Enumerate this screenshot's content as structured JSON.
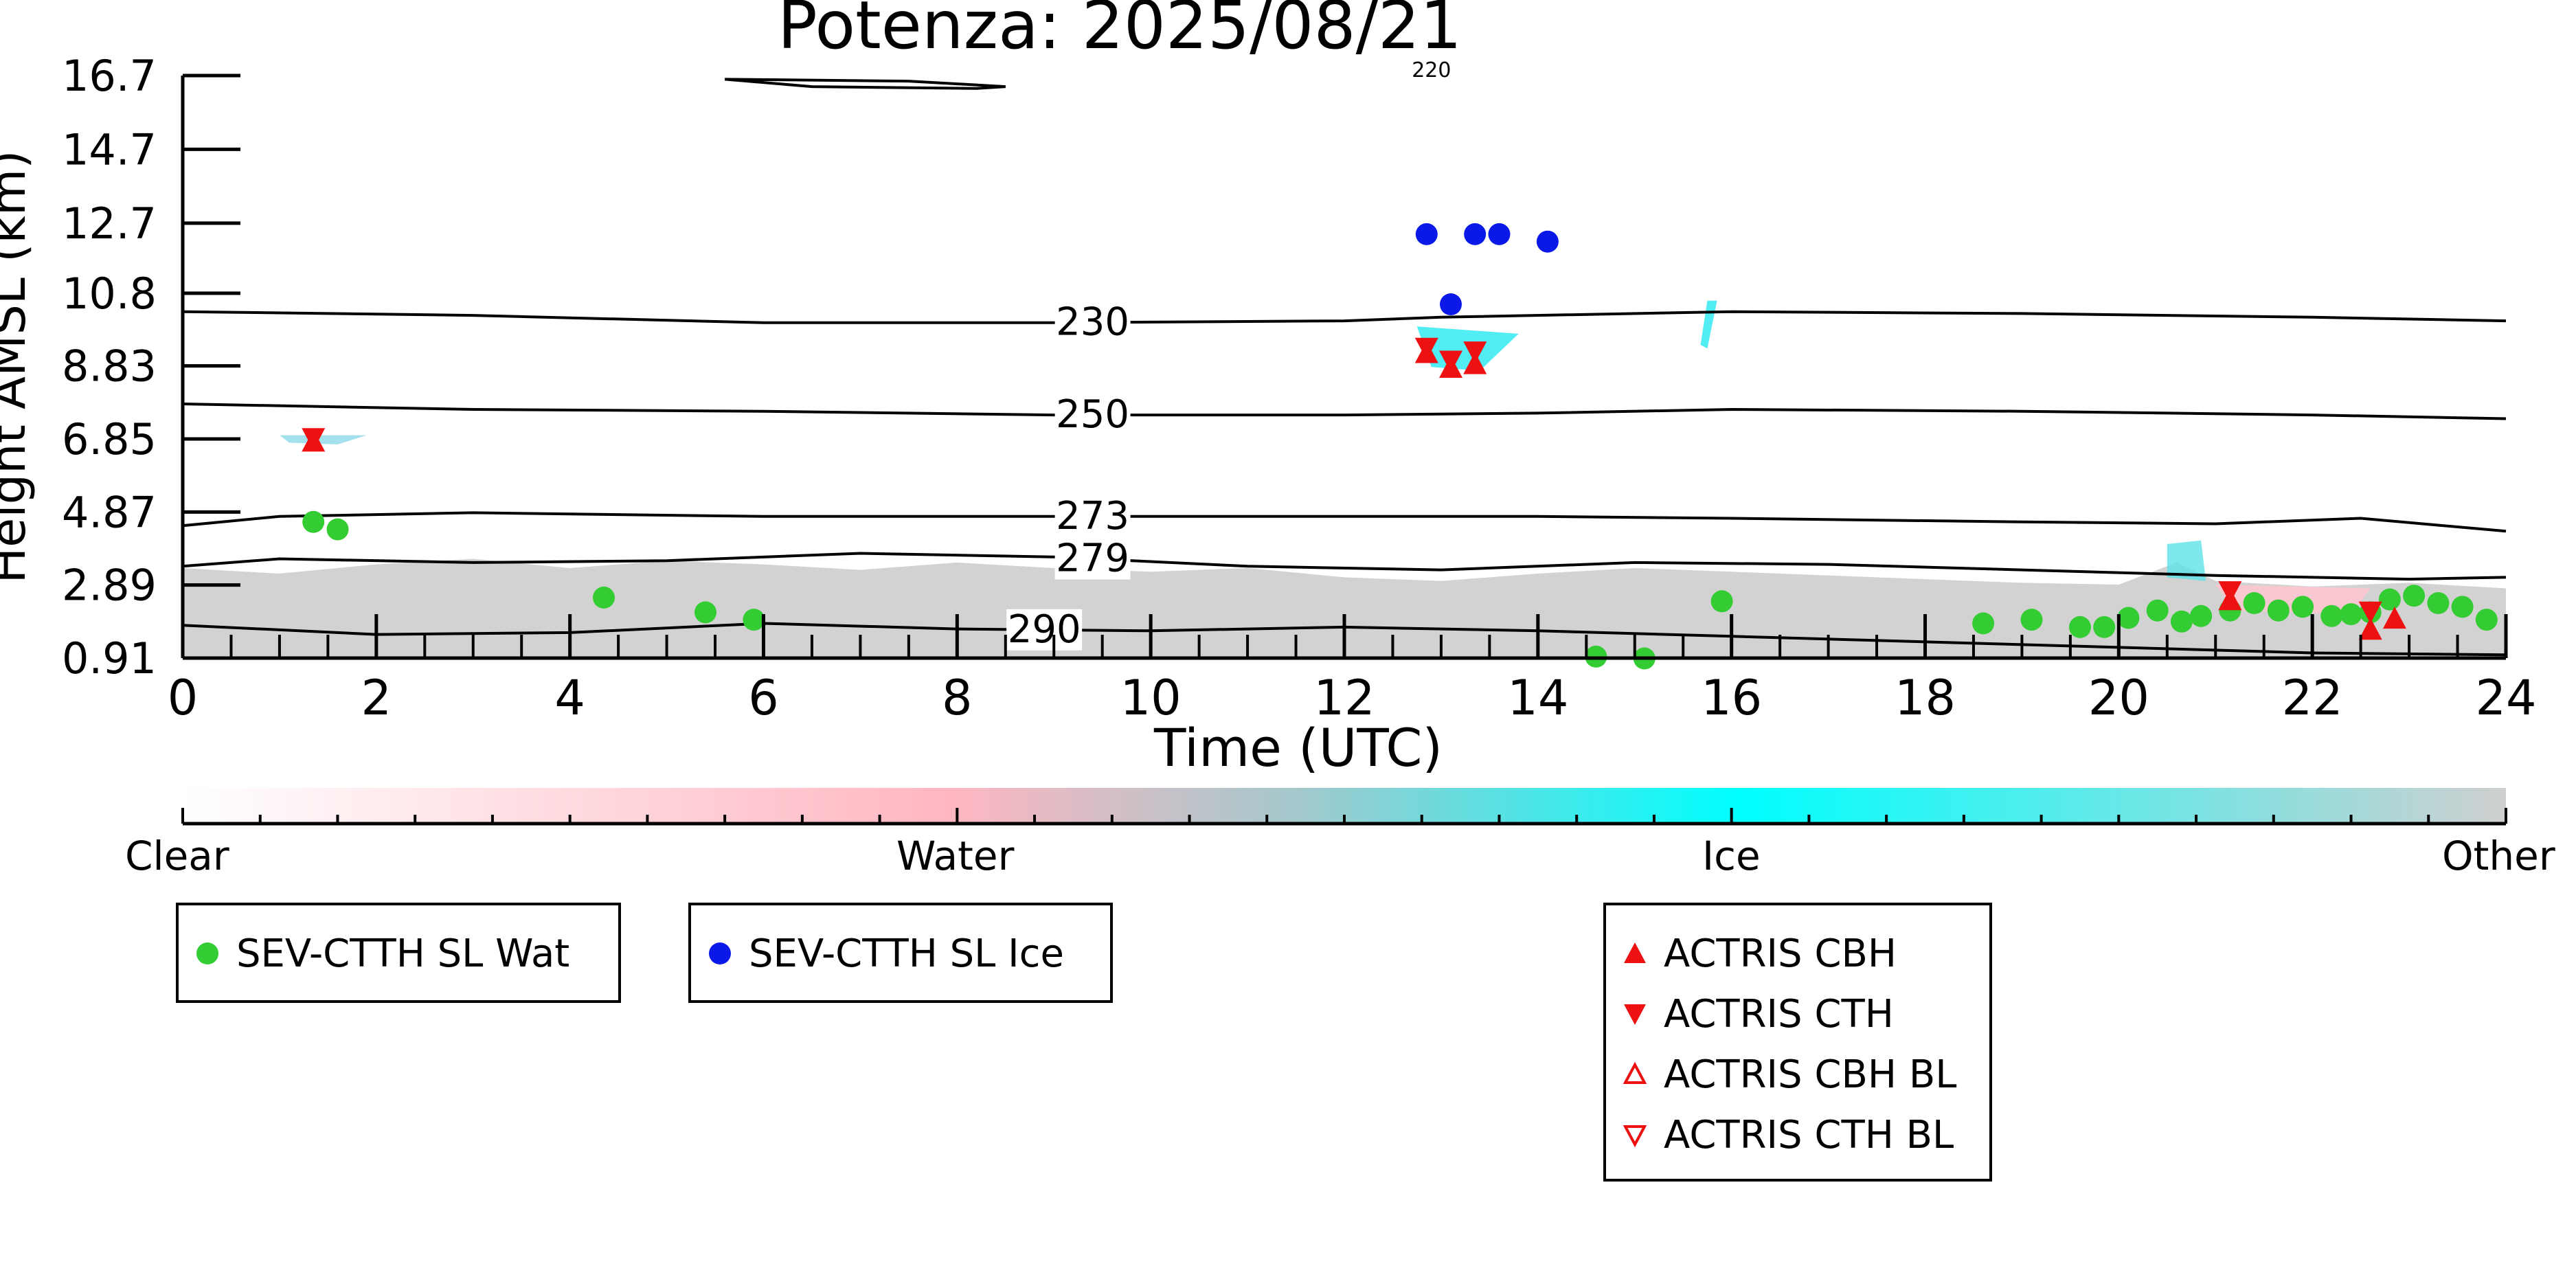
{
  "chart_data": {
    "type": "scatter",
    "title": "Potenza: 2025/08/21",
    "xlabel": "Time (UTC)",
    "ylabel": "Height AMSL (km)",
    "xlim": [
      0,
      24
    ],
    "ylim": [
      0.91,
      16.7
    ],
    "x_ticks": [
      "0",
      "2",
      "4",
      "6",
      "8",
      "10",
      "12",
      "14",
      "16",
      "18",
      "20",
      "22",
      "24"
    ],
    "y_ticks": [
      "0.91",
      "2.89",
      "4.87",
      "6.85",
      "8.83",
      "10.8",
      "12.7",
      "14.7",
      "16.7"
    ],
    "y_tick_values": [
      0.91,
      2.89,
      4.87,
      6.85,
      8.83,
      10.8,
      12.7,
      14.7,
      16.7
    ],
    "grid": false,
    "contours": [
      {
        "label": "230",
        "label_x": 9.4,
        "points": [
          [
            0,
            10.3
          ],
          [
            3,
            10.2
          ],
          [
            6,
            10.0
          ],
          [
            9,
            10.0
          ],
          [
            12,
            10.05
          ],
          [
            13,
            10.15
          ],
          [
            16,
            10.3
          ],
          [
            19,
            10.25
          ],
          [
            22,
            10.15
          ],
          [
            24,
            10.05
          ]
        ]
      },
      {
        "label": "250",
        "label_x": 9.4,
        "points": [
          [
            0,
            7.8
          ],
          [
            3,
            7.65
          ],
          [
            6,
            7.6
          ],
          [
            9,
            7.5
          ],
          [
            12,
            7.5
          ],
          [
            14,
            7.55
          ],
          [
            16,
            7.65
          ],
          [
            19,
            7.6
          ],
          [
            22,
            7.5
          ],
          [
            24,
            7.4
          ]
        ]
      },
      {
        "label": "273",
        "label_x": 9.4,
        "points": [
          [
            0,
            4.5
          ],
          [
            1,
            4.75
          ],
          [
            3,
            4.85
          ],
          [
            6,
            4.75
          ],
          [
            9,
            4.75
          ],
          [
            12,
            4.75
          ],
          [
            14,
            4.75
          ],
          [
            16,
            4.7
          ],
          [
            19,
            4.6
          ],
          [
            21,
            4.55
          ],
          [
            22.5,
            4.7
          ],
          [
            24,
            4.35
          ]
        ]
      },
      {
        "label": "279",
        "label_x": 9.4,
        "points": [
          [
            0,
            3.4
          ],
          [
            1,
            3.6
          ],
          [
            3,
            3.5
          ],
          [
            5,
            3.55
          ],
          [
            7,
            3.75
          ],
          [
            9,
            3.65
          ],
          [
            11,
            3.4
          ],
          [
            13,
            3.3
          ],
          [
            15,
            3.5
          ],
          [
            17,
            3.45
          ],
          [
            19,
            3.3
          ],
          [
            21,
            3.15
          ],
          [
            23,
            3.05
          ],
          [
            24,
            3.1
          ]
        ]
      },
      {
        "label": "290",
        "label_x": 8.9,
        "points": [
          [
            0,
            1.8
          ],
          [
            2,
            1.55
          ],
          [
            4,
            1.6
          ],
          [
            6,
            1.85
          ],
          [
            8,
            1.7
          ],
          [
            10,
            1.65
          ],
          [
            12,
            1.75
          ],
          [
            14,
            1.65
          ],
          [
            16,
            1.5
          ],
          [
            18,
            1.35
          ],
          [
            20,
            1.2
          ],
          [
            22,
            1.05
          ],
          [
            24,
            1.0
          ]
        ]
      },
      {
        "label": "220",
        "label_x": 12.9,
        "points": [
          [
            5.6,
            16.6
          ],
          [
            6.5,
            16.4
          ],
          [
            8.2,
            16.35
          ],
          [
            8.5,
            16.4
          ],
          [
            7.5,
            16.55
          ],
          [
            5.6,
            16.6
          ]
        ]
      }
    ],
    "series": [
      {
        "name": "SEV-CTTH SL Wat",
        "marker": "circle",
        "color": "#33cc33",
        "x": [
          1.35,
          1.6,
          4.35,
          5.4,
          5.9,
          14.6,
          15.1,
          15.9,
          18.6,
          19.1,
          19.6,
          19.85,
          20.1,
          20.4,
          20.65,
          20.85,
          21.15,
          21.4,
          21.65,
          21.9,
          22.2,
          22.4,
          22.6,
          22.8,
          23.05,
          23.3,
          23.55,
          23.8
        ],
        "y": [
          4.6,
          4.4,
          2.55,
          2.15,
          1.95,
          0.95,
          0.9,
          2.45,
          1.85,
          1.95,
          1.75,
          1.75,
          2.0,
          2.2,
          1.9,
          2.05,
          2.2,
          2.4,
          2.2,
          2.3,
          2.05,
          2.1,
          2.15,
          2.5,
          2.6,
          2.4,
          2.3,
          1.95
        ]
      },
      {
        "name": "SEV-CTTH SL Ice",
        "marker": "circle",
        "color": "#0a18e8",
        "x": [
          12.85,
          13.35,
          13.6,
          14.1,
          13.1
        ],
        "y": [
          12.4,
          12.4,
          12.4,
          12.2,
          10.5
        ]
      },
      {
        "name": "ACTRIS CBH",
        "marker": "triangle-up",
        "color": "#ee1111",
        "x": [
          1.35,
          12.85,
          13.1,
          13.35,
          21.15,
          22.6,
          22.85
        ],
        "y": [
          6.75,
          9.15,
          8.75,
          8.85,
          2.45,
          1.65,
          1.95
        ]
      },
      {
        "name": "ACTRIS CTH",
        "marker": "triangle-down",
        "color": "#ee1111",
        "x": [
          1.35,
          12.85,
          13.1,
          13.35,
          21.15,
          22.6
        ],
        "y": [
          6.9,
          9.35,
          9.0,
          9.25,
          2.75,
          2.2
        ]
      }
    ],
    "colorbar": {
      "labels": [
        "Clear",
        "Water",
        "Ice",
        "Other"
      ]
    },
    "legends": [
      {
        "entries": [
          {
            "label": "SEV-CTTH SL Wat",
            "marker": "circle",
            "color": "#33cc33"
          }
        ]
      },
      {
        "entries": [
          {
            "label": "SEV-CTTH SL Ice",
            "marker": "circle",
            "color": "#0a18e8"
          }
        ]
      },
      {
        "entries": [
          {
            "label": "ACTRIS CBH",
            "marker": "triangle-up",
            "color": "#ee1111"
          },
          {
            "label": "ACTRIS CTH",
            "marker": "triangle-down",
            "color": "#ee1111"
          },
          {
            "label": "ACTRIS CBH BL",
            "marker": "triangle-up-open",
            "color": "#ee1111"
          },
          {
            "label": "ACTRIS CTH BL",
            "marker": "triangle-down-open",
            "color": "#ee1111"
          }
        ]
      }
    ]
  }
}
